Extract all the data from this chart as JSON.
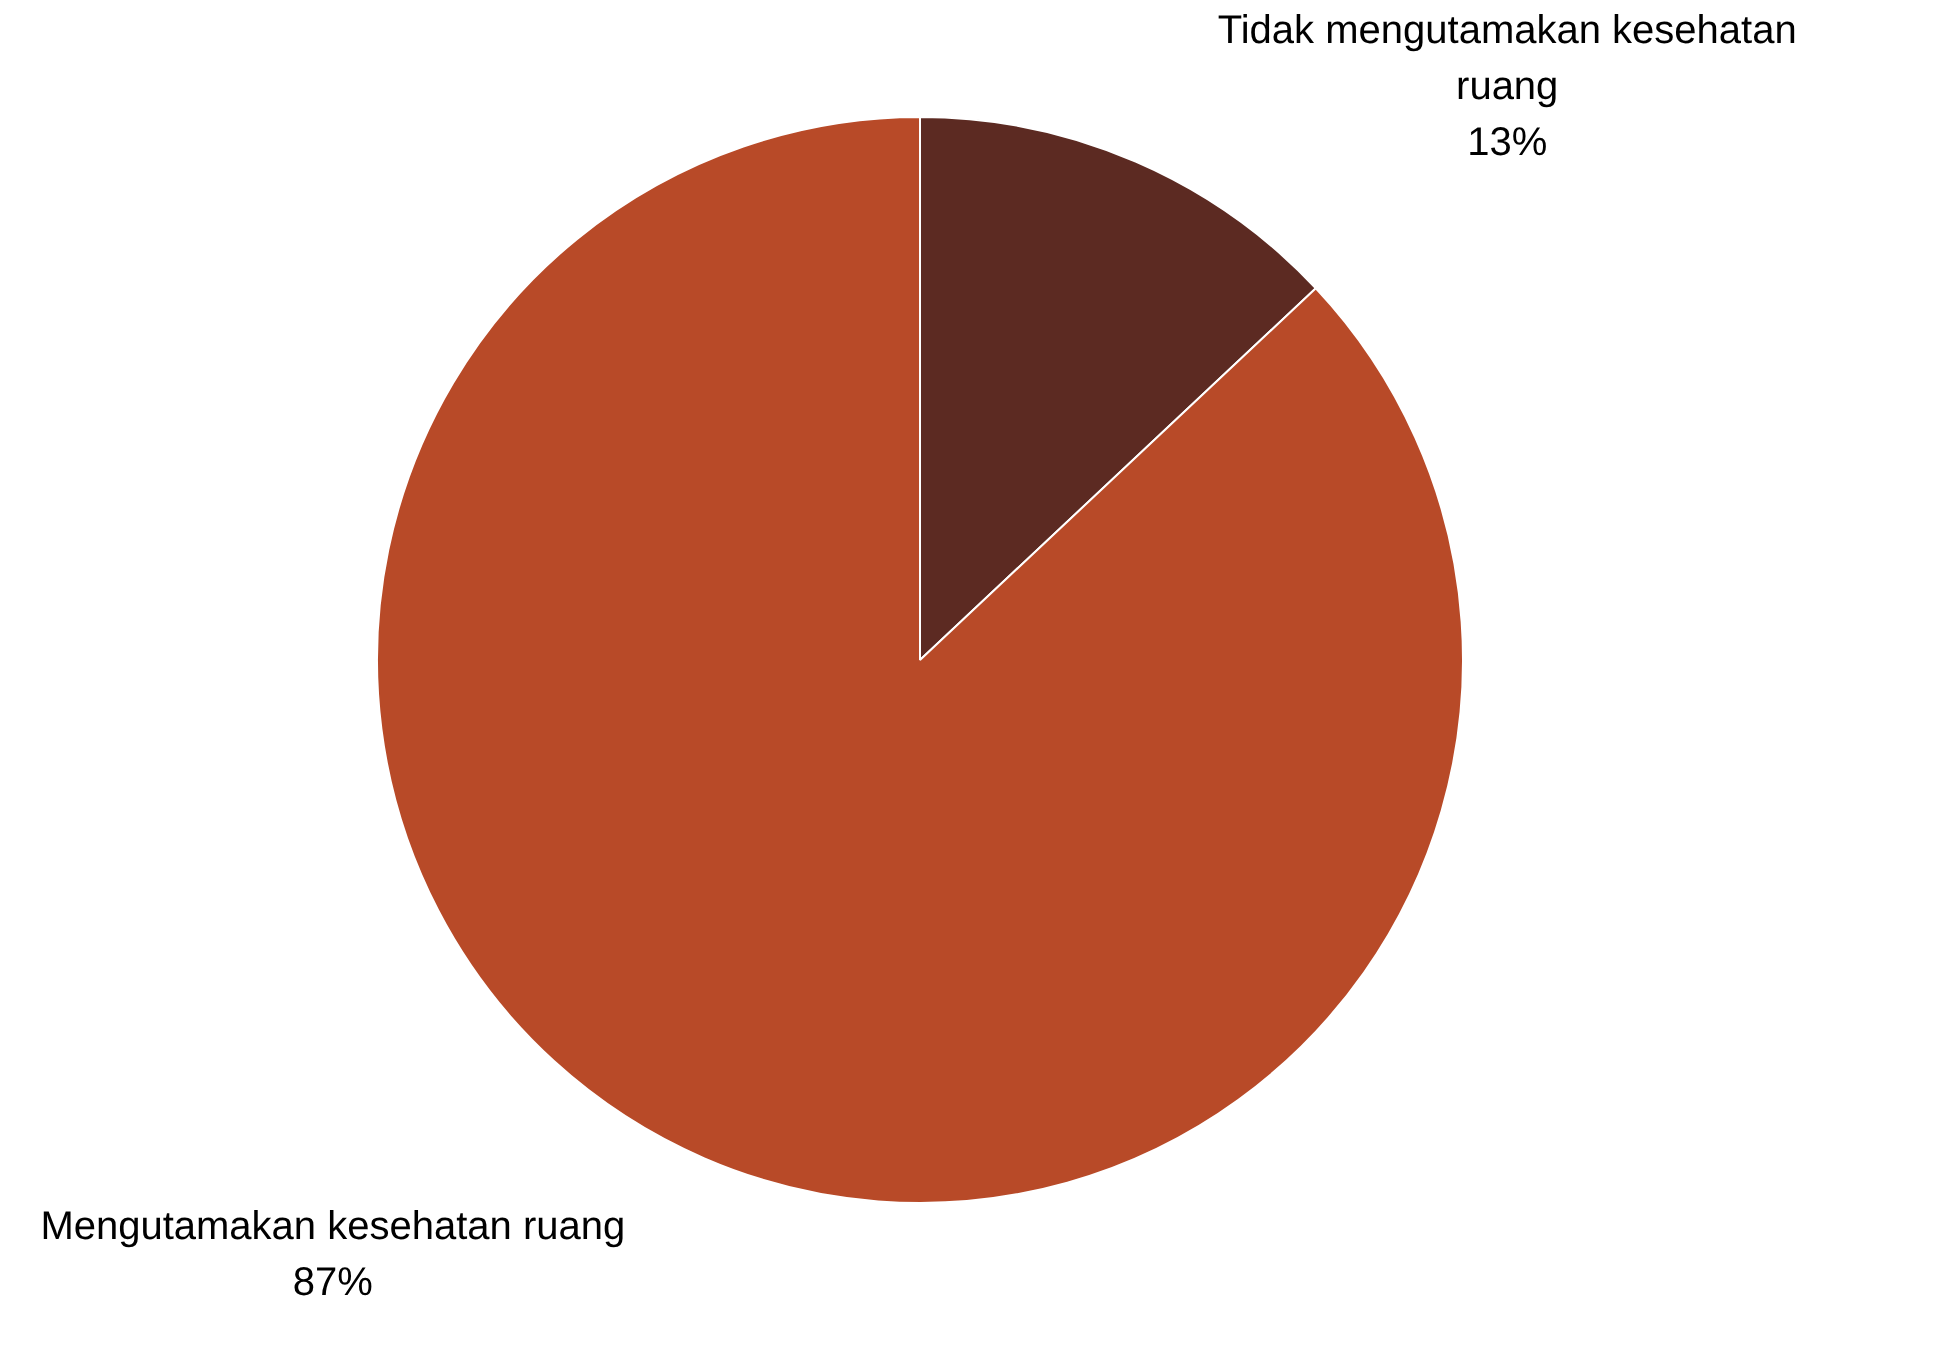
{
  "chart_data": {
    "type": "pie",
    "categories": [
      "Tidak mengutamakan kesehatan ruang",
      "Mengutamakan kesehatan ruang"
    ],
    "values": [
      13,
      87
    ],
    "value_labels": [
      "13%",
      "87%"
    ],
    "colors": [
      "#5c2a22",
      "#b84a28"
    ],
    "legend": false
  }
}
